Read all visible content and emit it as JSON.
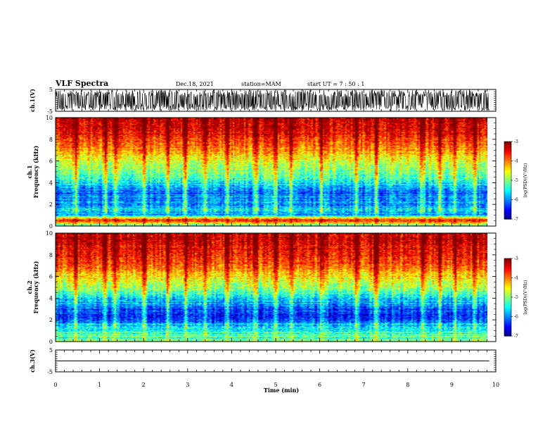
{
  "header": {
    "title": "VLF Spectra",
    "date": "Dec.18, 2021",
    "station": "station=MAM",
    "start": "start UT = 7 : 50 : 1"
  },
  "chart_data": [
    {
      "type": "line",
      "name": "ch1-waveform",
      "ylabel": "ch.1(V)",
      "ylim": [
        -5,
        5
      ],
      "yticks": [
        "5",
        "-5"
      ],
      "xlim": [
        0,
        10
      ],
      "note_series": "dense oscillating waveform roughly between -4.5 and 4.5 V"
    },
    {
      "type": "heatmap",
      "name": "ch1-spectrogram",
      "ylabel": "ch.1\nFrequency (kHz)",
      "ylim": [
        0,
        10
      ],
      "yticks": [
        "0",
        "2",
        "4",
        "6",
        "8",
        "10"
      ],
      "xlim": [
        0,
        9.85
      ],
      "colorbar": {
        "label": "log(PSD)(V²/Hz)",
        "ticks": [
          "-3",
          "-4",
          "-5",
          "-6",
          "-7"
        ],
        "range": [
          -7,
          -3
        ]
      },
      "profile_freq_khz": [
        0,
        0.5,
        1,
        1.5,
        2,
        2.5,
        3,
        3.5,
        4,
        4.5,
        5,
        5.5,
        6,
        6.5,
        7,
        7.5,
        8,
        8.5,
        9,
        9.5,
        10
      ],
      "profile_log_psd": [
        -5.2,
        -3.4,
        -5.9,
        -5.6,
        -5.9,
        -6.1,
        -6.0,
        -5.8,
        -5.5,
        -5.2,
        -5.0,
        -4.8,
        -4.6,
        -4.4,
        -4.1,
        -3.9,
        -3.7,
        -3.5,
        -3.4,
        -3.3,
        -3.3
      ],
      "bursts_min": [
        0.45,
        1.12,
        1.35,
        2.0,
        2.55,
        2.95,
        3.4,
        3.9,
        4.55,
        5.0,
        5.35,
        6.05,
        6.85,
        7.3,
        8.35,
        8.75,
        9.1,
        9.55
      ]
    },
    {
      "type": "heatmap",
      "name": "ch2-spectrogram",
      "ylabel": "ch.2\nFrequency (kHz)",
      "ylim": [
        0,
        10
      ],
      "yticks": [
        "0",
        "2",
        "4",
        "6",
        "8",
        "10"
      ],
      "xlim": [
        0,
        9.85
      ],
      "colorbar": {
        "label": "log(PSD)(V²/Hz)",
        "ticks": [
          "-3",
          "-4",
          "-5",
          "-6",
          "-7"
        ],
        "range": [
          -7,
          -3
        ]
      },
      "profile_freq_khz": [
        0,
        0.5,
        1,
        1.5,
        2,
        2.5,
        3,
        3.5,
        4,
        4.5,
        5,
        5.5,
        6,
        6.5,
        7,
        7.5,
        8,
        8.5,
        9,
        9.5,
        10
      ],
      "profile_log_psd": [
        -5.0,
        -5.3,
        -5.4,
        -5.7,
        -6.2,
        -6.4,
        -6.2,
        -5.9,
        -5.6,
        -5.2,
        -4.9,
        -4.6,
        -4.4,
        -4.1,
        -3.9,
        -3.7,
        -3.6,
        -3.5,
        -3.4,
        -3.3,
        -3.3
      ],
      "bursts_min": [
        0.45,
        1.12,
        1.35,
        2.0,
        2.55,
        2.95,
        3.4,
        3.9,
        4.55,
        5.0,
        5.35,
        6.05,
        6.85,
        7.3,
        8.35,
        8.75,
        9.1,
        9.55
      ]
    },
    {
      "type": "line",
      "name": "ch3-waveform",
      "ylabel": "ch.3(V)",
      "ylim": [
        -5,
        5
      ],
      "yticks": [
        "5",
        "-5"
      ],
      "xlim": [
        0,
        10
      ],
      "x": [
        0,
        9.85
      ],
      "y": [
        0,
        0
      ]
    }
  ],
  "xaxis": {
    "label": "Time (min)",
    "ticks": [
      "0",
      "1",
      "2",
      "3",
      "4",
      "5",
      "6",
      "7",
      "8",
      "9",
      "10"
    ],
    "range": [
      0,
      10
    ]
  },
  "colors": {
    "background": "#ffffff",
    "axes": "#000000",
    "colormap": [
      "#00007f",
      "#0000ff",
      "#007fff",
      "#00ffff",
      "#7fff7f",
      "#ffff00",
      "#ff7f00",
      "#ff0000"
    ]
  }
}
